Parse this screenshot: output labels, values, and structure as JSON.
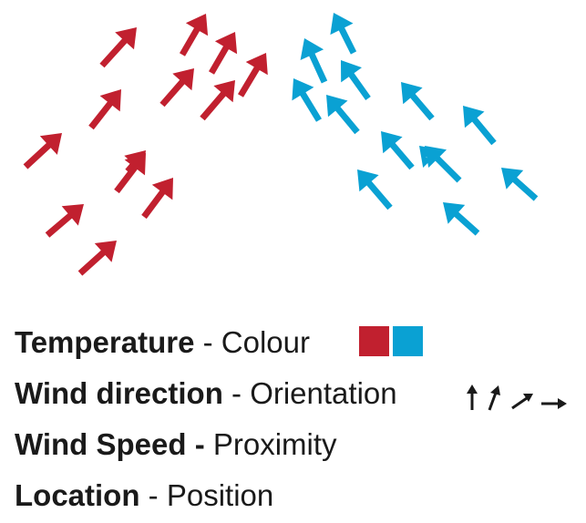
{
  "colors": {
    "warm": "#c1202f",
    "cool": "#0aa1d3",
    "text": "#1a1a1a"
  },
  "arrows": {
    "warm": [
      {
        "name": "warm-arrow-1"
      },
      {
        "name": "warm-arrow-2"
      },
      {
        "name": "warm-arrow-3"
      },
      {
        "name": "warm-arrow-4"
      },
      {
        "name": "warm-arrow-5"
      },
      {
        "name": "warm-arrow-6"
      },
      {
        "name": "warm-arrow-7"
      },
      {
        "name": "warm-arrow-8"
      },
      {
        "name": "warm-arrow-9"
      },
      {
        "name": "warm-arrow-10"
      },
      {
        "name": "warm-arrow-11"
      },
      {
        "name": "warm-arrow-12"
      },
      {
        "name": "warm-arrow-13"
      }
    ],
    "cool": [
      {
        "name": "cool-arrow-1"
      },
      {
        "name": "cool-arrow-2"
      },
      {
        "name": "cool-arrow-3"
      },
      {
        "name": "cool-arrow-4"
      },
      {
        "name": "cool-arrow-5"
      },
      {
        "name": "cool-arrow-6"
      },
      {
        "name": "cool-arrow-7"
      },
      {
        "name": "cool-arrow-8"
      },
      {
        "name": "cool-arrow-9"
      },
      {
        "name": "cool-arrow-10"
      },
      {
        "name": "cool-arrow-11"
      },
      {
        "name": "cool-arrow-12"
      },
      {
        "name": "cool-arrow-13"
      }
    ]
  },
  "legend": {
    "temperature": {
      "label": "Temperature",
      "separator": " - ",
      "encoding": "Colour",
      "swatches": [
        "#c1202f",
        "#0aa1d3"
      ]
    },
    "wind_direction": {
      "label": "Wind direction",
      "separator": " - ",
      "encoding": "Orientation",
      "icon": "orientation-arrows-icon"
    },
    "wind_speed": {
      "label": "Wind Speed",
      "separator": " - ",
      "encoding": "Proximity"
    },
    "location": {
      "label": "Location",
      "separator": " - ",
      "encoding": "Position"
    }
  }
}
